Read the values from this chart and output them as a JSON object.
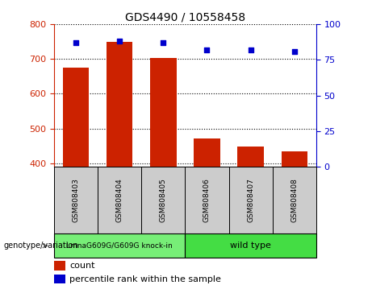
{
  "title": "GDS4490 / 10558458",
  "samples": [
    "GSM808403",
    "GSM808404",
    "GSM808405",
    "GSM808406",
    "GSM808407",
    "GSM808408"
  ],
  "counts": [
    675,
    750,
    703,
    472,
    449,
    435
  ],
  "percentile_ranks": [
    87,
    88,
    87,
    82,
    82,
    81
  ],
  "ylim_left": [
    390,
    800
  ],
  "ylim_right": [
    0,
    100
  ],
  "yticks_left": [
    400,
    500,
    600,
    700,
    800
  ],
  "yticks_right": [
    0,
    25,
    50,
    75,
    100
  ],
  "bar_color": "#cc2200",
  "dot_color": "#0000cc",
  "groups": [
    {
      "label": "LmnaG609G/G609G knock-in",
      "samples_idx": [
        0,
        1,
        2
      ],
      "color": "#77ee77"
    },
    {
      "label": "wild type",
      "samples_idx": [
        3,
        4,
        5
      ],
      "color": "#44dd44"
    }
  ],
  "group_box_color": "#cccccc",
  "legend_count": "count",
  "legend_pct": "percentile rank within the sample",
  "genotype_label": "genotype/variation",
  "axis_color_left": "#cc2200",
  "axis_color_right": "#0000cc"
}
